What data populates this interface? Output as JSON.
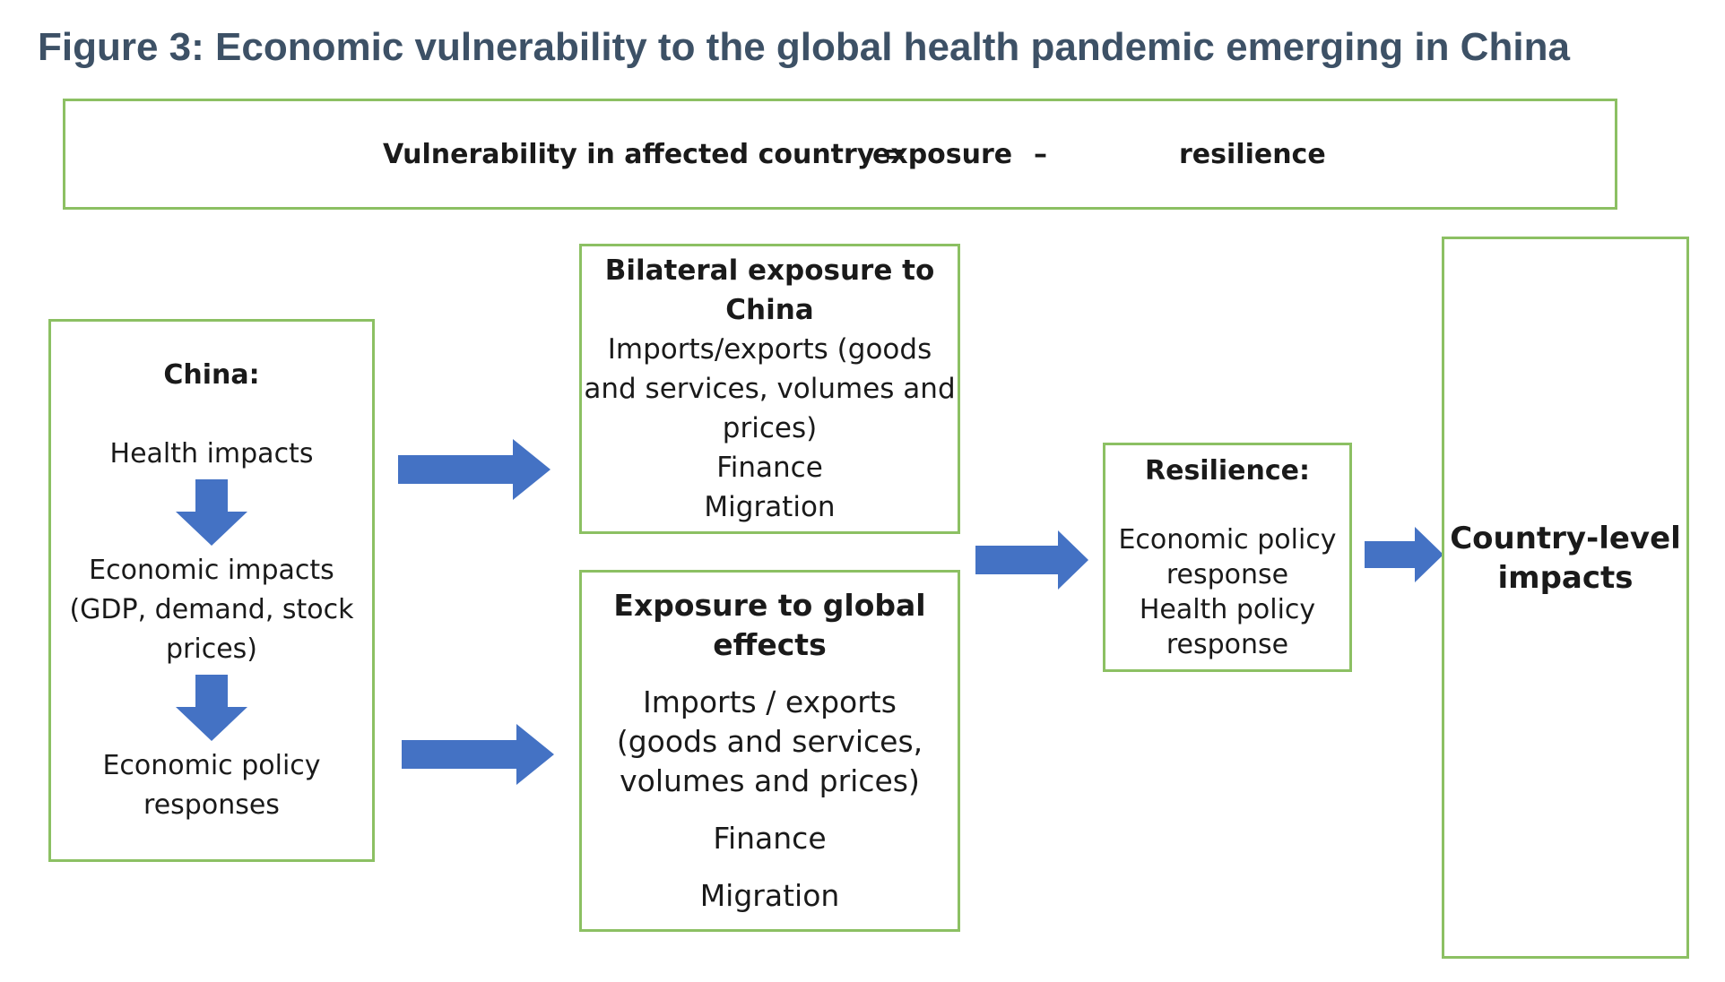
{
  "figure": {
    "title": "Figure 3: Economic vulnerability to the global health pandemic emerging in China"
  },
  "formula": {
    "lhs": "Vulnerability in affected country =",
    "exposure": "exposure",
    "minus": "–",
    "resilience": "resilience"
  },
  "china_box": {
    "heading": "China:",
    "health": "Health impacts",
    "economic_line1": "Economic impacts",
    "economic_line2": "(GDP, demand, stock",
    "economic_line3": "prices)",
    "policy_line1": "Economic policy",
    "policy_line2": "responses"
  },
  "bilateral_box": {
    "heading_line1": "Bilateral exposure to",
    "heading_line2": "China",
    "line1": "Imports/exports (goods",
    "line2": "and services, volumes and",
    "line3": "prices)",
    "line4": "Finance",
    "line5": "Migration"
  },
  "global_box": {
    "heading_line1": "Exposure to global",
    "heading_line2": "effects",
    "line1": "Imports / exports",
    "line2": "(goods and services,",
    "line3": "volumes and prices)",
    "line4": "Finance",
    "line5": "Migration"
  },
  "resilience_box": {
    "heading": "Resilience:",
    "line1": "Economic policy",
    "line2": "response",
    "line3": "Health policy",
    "line4": "response"
  },
  "country_box": {
    "line1": "Country-level",
    "line2": "impacts"
  },
  "colors": {
    "box_border": "#8cc063",
    "arrow_fill": "#4472c4",
    "title": "#3d5166"
  }
}
